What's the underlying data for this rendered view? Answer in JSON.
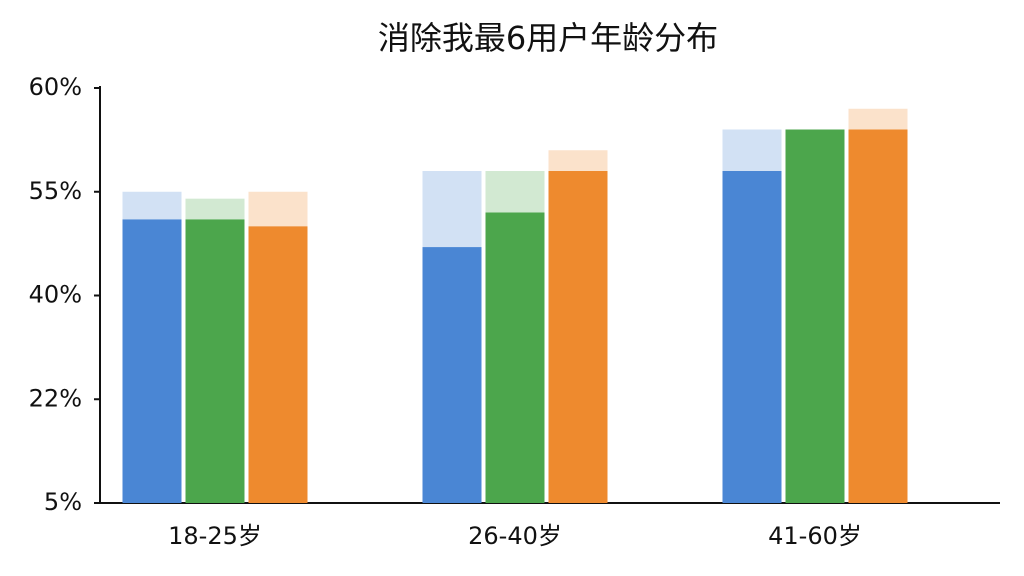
{
  "chart_data": {
    "type": "bar",
    "title": "消除我最6用户年龄分布",
    "categories": [
      "18-25岁",
      "26-40岁",
      "41-60岁"
    ],
    "series": [
      {
        "color": "#4a86d4",
        "values": [
          51,
          47,
          56
        ],
        "faded_values": [
          55,
          56,
          58
        ]
      },
      {
        "color": "#4ca64c",
        "values": [
          51,
          52,
          58
        ],
        "faded_values": [
          54,
          56,
          58
        ]
      },
      {
        "color": "#ee8a2e",
        "values": [
          50,
          56,
          58
        ],
        "faded_values": [
          55,
          57,
          59
        ]
      }
    ],
    "ylim": [
      5,
      60
    ],
    "yticks": [
      {
        "value": 5,
        "label": "5%"
      },
      {
        "value": 22,
        "label": "22%"
      },
      {
        "value": 40,
        "label": "40%"
      },
      {
        "value": 55,
        "label": "55%"
      },
      {
        "value": 60,
        "label": "60%"
      }
    ]
  }
}
